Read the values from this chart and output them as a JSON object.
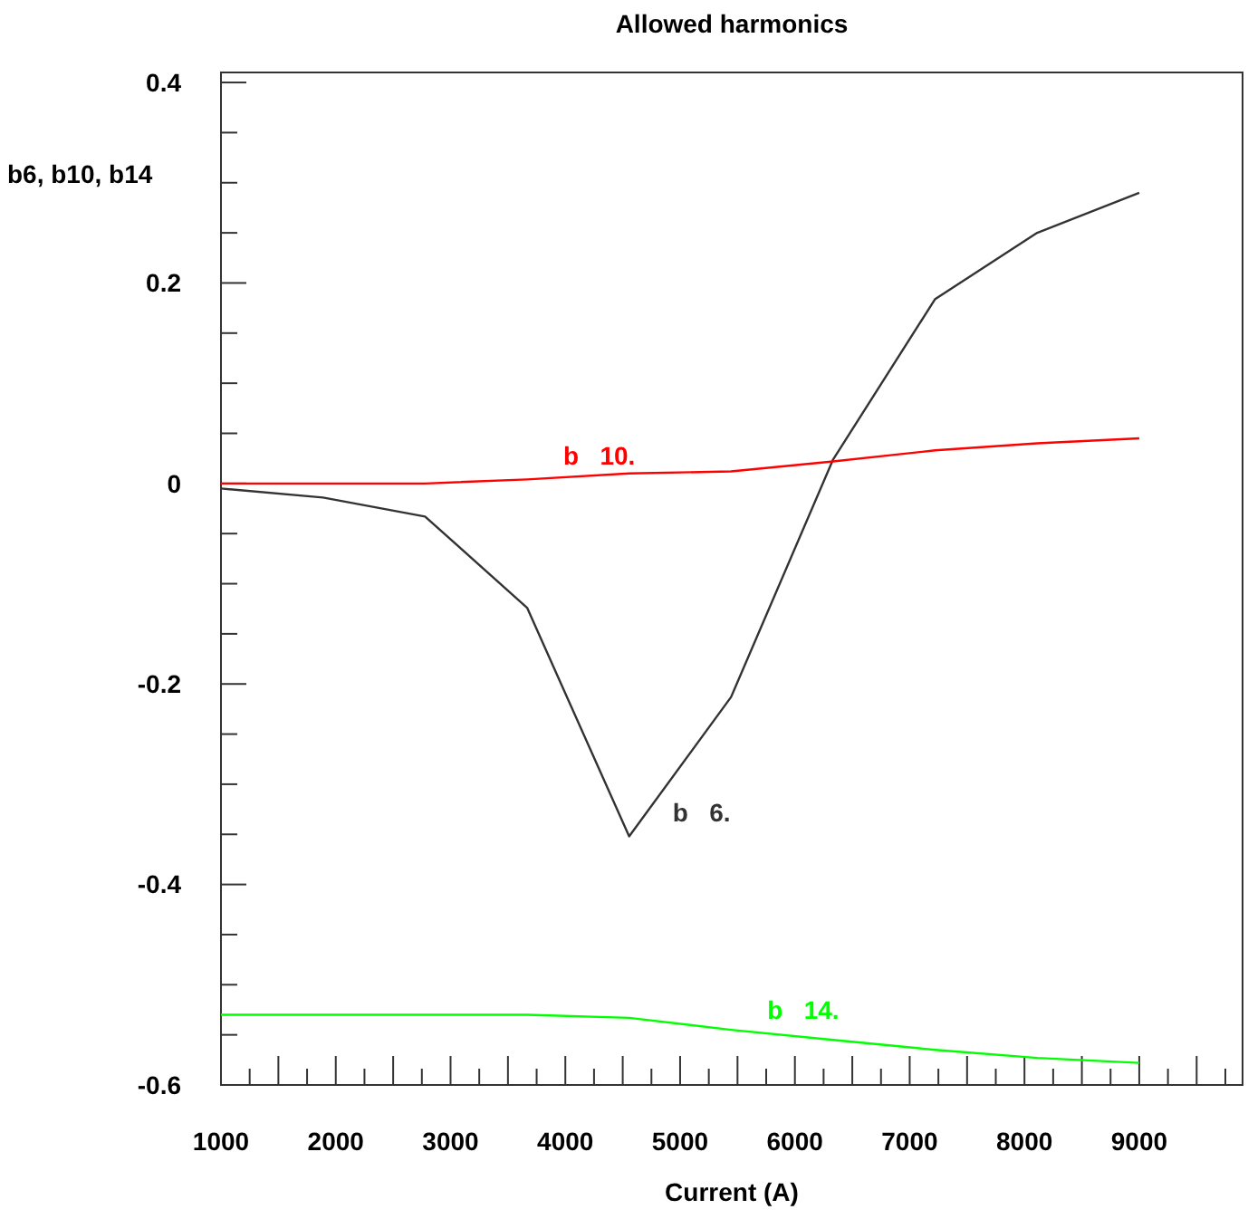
{
  "chart_data": {
    "type": "line",
    "title": "Allowed harmonics",
    "xlabel": "Current (A)",
    "ylabel": "b6, b10, b14",
    "x": [
      1000,
      1889,
      2778,
      3667,
      4556,
      5444,
      6333,
      7222,
      8111,
      9000
    ],
    "series": [
      {
        "name": "b   6.",
        "color": "#333333",
        "values": [
          -0.005,
          -0.014,
          -0.033,
          -0.124,
          -0.352,
          -0.213,
          0.024,
          0.184,
          0.25,
          0.29
        ]
      },
      {
        "name": "b   10.",
        "color": "#ff0000",
        "values": [
          0,
          0,
          0,
          0.004,
          0.01,
          0.012,
          0.022,
          0.033,
          0.04,
          0.045
        ]
      },
      {
        "name": "b   14.",
        "color": "#00ff00",
        "values": [
          -0.53,
          -0.53,
          -0.53,
          -0.53,
          -0.533,
          -0.545,
          -0.555,
          -0.565,
          -0.573,
          -0.578
        ]
      }
    ],
    "xlim": [
      1000,
      9900
    ],
    "xticks": [
      1000,
      {
        "value": 1250,
        "label": null
      },
      {
        "value": 1500,
        "label": null
      },
      {
        "value": 1750,
        "label": null
      },
      2000,
      {
        "value": 2250,
        "label": null
      },
      {
        "value": 2500,
        "label": null
      },
      {
        "value": 2750,
        "label": null
      },
      3000,
      {
        "value": 3250,
        "label": null
      },
      {
        "value": 3500,
        "label": null
      },
      {
        "value": 3750,
        "label": null
      },
      4000,
      {
        "value": 4250,
        "label": null
      },
      {
        "value": 4500,
        "label": null
      },
      {
        "value": 4750,
        "label": null
      },
      5000,
      {
        "value": 5250,
        "label": null
      },
      {
        "value": 5500,
        "label": null
      },
      {
        "value": 5750,
        "label": null
      },
      6000,
      {
        "value": 6250,
        "label": null
      },
      {
        "value": 6500,
        "label": null
      },
      {
        "value": 6750,
        "label": null
      },
      7000,
      {
        "value": 7250,
        "label": null
      },
      {
        "value": 7500,
        "label": null
      },
      {
        "value": 7750,
        "label": null
      },
      8000,
      {
        "value": 8250,
        "label": null
      },
      {
        "value": 8500,
        "label": null
      },
      {
        "value": 8750,
        "label": null
      },
      9000,
      {
        "value": 9250,
        "label": null
      },
      {
        "value": 9500,
        "label": null
      },
      {
        "value": 9750,
        "label": null
      }
    ],
    "ylim": [
      -0.6,
      0.41
    ],
    "yticks": [
      -0.6,
      {
        "value": -0.55,
        "label": null
      },
      {
        "value": -0.5,
        "label": null
      },
      {
        "value": -0.45,
        "label": null
      },
      -0.4,
      {
        "value": -0.35,
        "label": null
      },
      {
        "value": -0.3,
        "label": null
      },
      {
        "value": -0.25,
        "label": null
      },
      -0.2,
      {
        "value": -0.15,
        "label": null
      },
      {
        "value": -0.1,
        "label": null
      },
      {
        "value": -0.05,
        "label": null
      },
      0,
      {
        "value": 0.05,
        "label": null
      },
      {
        "value": 0.1,
        "label": null
      },
      {
        "value": 0.15,
        "label": null
      },
      0.2,
      {
        "value": 0.25,
        "label": null
      },
      {
        "value": 0.3,
        "label": null
      },
      {
        "value": 0.35,
        "label": null
      },
      0.4
    ],
    "grid": false,
    "legend": false,
    "marker": "none",
    "line_style": "solid"
  }
}
